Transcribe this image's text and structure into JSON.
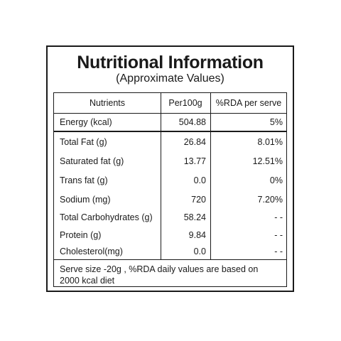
{
  "label": {
    "title": "Nutritional Information",
    "subtitle": "(Approximate Values)"
  },
  "table": {
    "headers": {
      "nutrients": "Nutrients",
      "per100g": "Per100g",
      "rda": "%RDA per serve"
    },
    "rows": [
      {
        "name": "Energy (kcal)",
        "per100g": "504.88",
        "rda": "5%"
      },
      {
        "name": "Total Fat (g)",
        "per100g": "26.84",
        "rda": "8.01%"
      },
      {
        "name": "Saturated fat (g)",
        "per100g": "13.77",
        "rda": "12.51%"
      },
      {
        "name": "Trans fat (g)",
        "per100g": "0.0",
        "rda": "0%"
      },
      {
        "name": "Sodium (mg)",
        "per100g": "720",
        "rda": "7.20%"
      },
      {
        "name": "Total Carbohydrates (g)",
        "per100g": "58.24",
        "rda": "- -"
      },
      {
        "name": "Protein (g)",
        "per100g": "9.84",
        "rda": "- -"
      },
      {
        "name": "Cholesterol(mg)",
        "per100g": "0.0",
        "rda": "- -"
      }
    ]
  },
  "footnote": "Serve size -20g , %RDA daily values are based on 2000 kcal diet"
}
